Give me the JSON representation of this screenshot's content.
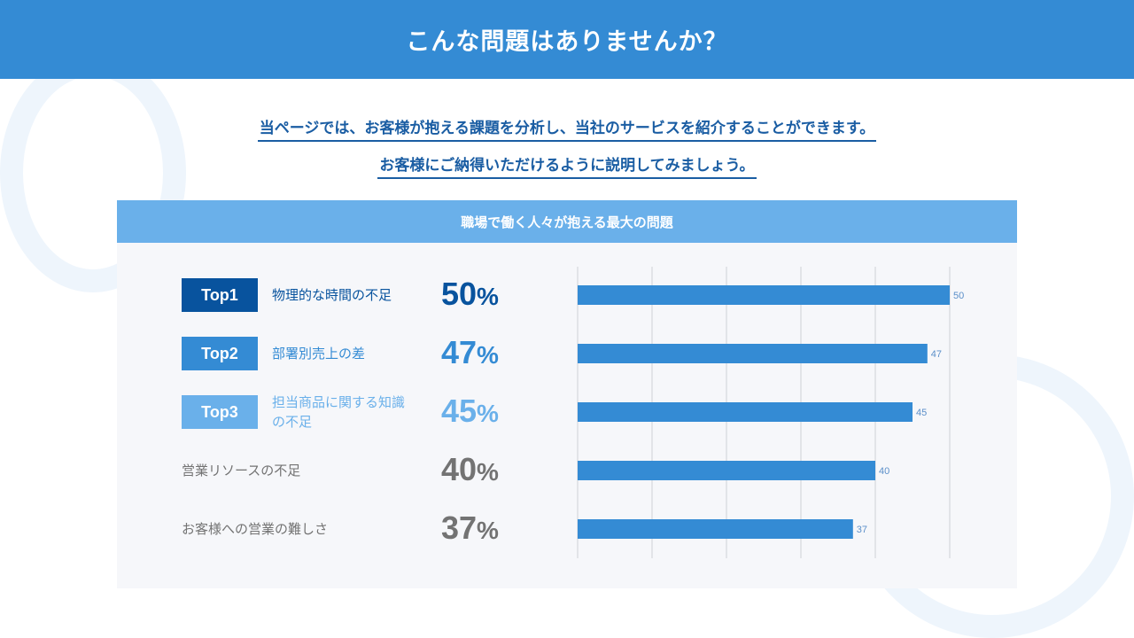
{
  "header": {
    "title": "こんな問題はありませんか？"
  },
  "intro": {
    "line1": "当ページでは、お客様が抱える課題を分析し、当社のサービスを紹介することができます。",
    "line2": "お客様にご納得いただけるように説明してみましょう。"
  },
  "panel": {
    "title": "職場で働く人々が抱える最大の問題"
  },
  "colors": {
    "header": "#348bd4",
    "top1": "#08539e",
    "top2": "#348bd4",
    "top3": "#6ab0ea",
    "other": "#737373",
    "bar": "#348bd4"
  },
  "rows": [
    {
      "badge": "Top1",
      "label": "物理的な時間の不足",
      "pct": "50",
      "unit": "%"
    },
    {
      "badge": "Top2",
      "label": "部署別売上の差",
      "pct": "47",
      "unit": "%"
    },
    {
      "badge": "Top3",
      "label": "担当商品に関する知識の不足",
      "pct": "45",
      "unit": "%"
    },
    {
      "badge": "",
      "label": "営業リソースの不足",
      "pct": "40",
      "unit": "%"
    },
    {
      "badge": "",
      "label": "お客様への営業の難しさ",
      "pct": "37",
      "unit": "%"
    }
  ],
  "chart_data": {
    "type": "bar",
    "orientation": "horizontal",
    "categories": [
      "物理的な時間の不足",
      "部署別売上の差",
      "担当商品に関する知識の不足",
      "営業リソースの不足",
      "お客様への営業の難しさ"
    ],
    "values": [
      50,
      47,
      45,
      40,
      37
    ],
    "xlim": [
      0,
      50
    ],
    "grid": true,
    "data_labels": [
      "50",
      "47",
      "45",
      "40",
      "37"
    ]
  }
}
